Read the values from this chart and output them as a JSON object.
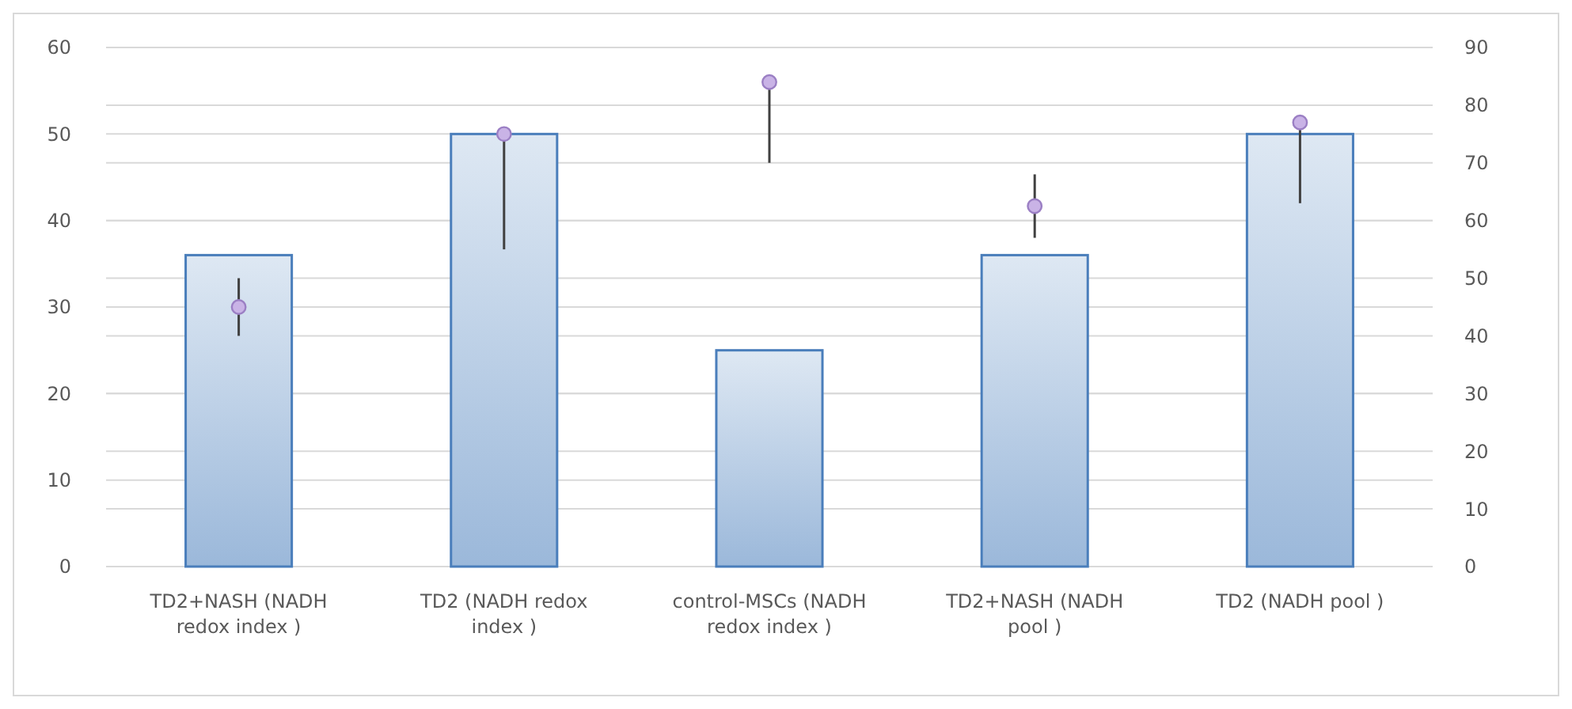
{
  "chart_data": {
    "type": "bar",
    "categories": [
      "TD2+NASH (NADH redox index )",
      "TD2 (NADH redox index )",
      "control-MSCs (NADH redox index )",
      "TD2+NASH (NADH pool )",
      "TD2 (NADH pool )"
    ],
    "series": [
      {
        "color": "#4a7ebb",
        "values": [
          36,
          50,
          25,
          36,
          50
        ]
      },
      {
        "type": "scatter",
        "axis": "y2",
        "color": "#c9b3e6",
        "marker": "circle",
        "values": [
          45,
          75,
          84,
          62.5,
          77
        ],
        "errors": [
          5,
          [
            55,
            75
          ],
          [
            70,
            84
          ],
          5.5,
          [
            63,
            77
          ]
        ]
      }
    ],
    "ylim": [
      0,
      60
    ],
    "yticks": [
      0,
      10,
      20,
      30,
      40,
      50,
      60
    ],
    "y2lim": [
      0,
      90
    ],
    "y2ticks": [
      0,
      10,
      20,
      30,
      40,
      50,
      60,
      70,
      80,
      90
    ],
    "grid": true
  }
}
